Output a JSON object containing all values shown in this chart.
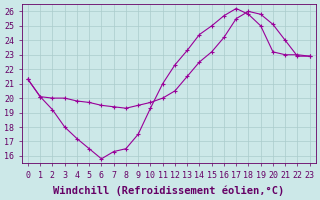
{
  "xlabel": "Windchill (Refroidissement éolien,°C)",
  "ylabel": "",
  "xlim": [
    -0.5,
    23.5
  ],
  "ylim": [
    15.5,
    26.5
  ],
  "xticks": [
    0,
    1,
    2,
    3,
    4,
    5,
    6,
    7,
    8,
    9,
    10,
    11,
    12,
    13,
    14,
    15,
    16,
    17,
    18,
    19,
    20,
    21,
    22,
    23
  ],
  "yticks": [
    16,
    17,
    18,
    19,
    20,
    21,
    22,
    23,
    24,
    25,
    26
  ],
  "bg_color": "#cce8e8",
  "grid_color": "#aacccc",
  "line_color": "#990099",
  "line1_x": [
    0,
    1,
    2,
    3,
    4,
    5,
    6,
    7,
    8,
    9,
    10,
    11,
    12,
    13,
    14,
    15,
    16,
    17,
    18,
    19,
    20,
    21,
    22,
    23
  ],
  "line1_y": [
    21.3,
    20.1,
    19.2,
    18.0,
    17.2,
    16.5,
    15.8,
    16.3,
    16.5,
    17.5,
    19.3,
    21.0,
    22.3,
    23.3,
    24.4,
    25.0,
    25.7,
    26.2,
    25.8,
    25.0,
    23.2,
    23.0,
    23.0,
    22.9
  ],
  "line2_x": [
    0,
    1,
    2,
    3,
    4,
    5,
    6,
    7,
    8,
    9,
    10,
    11,
    12,
    13,
    14,
    15,
    16,
    17,
    18,
    19,
    20,
    21,
    22,
    23
  ],
  "line2_y": [
    21.3,
    20.1,
    20.0,
    20.0,
    19.8,
    19.7,
    19.5,
    19.4,
    19.3,
    19.5,
    19.7,
    20.0,
    20.5,
    21.5,
    22.5,
    23.2,
    24.2,
    25.5,
    26.0,
    25.8,
    25.1,
    24.0,
    22.9,
    22.9
  ],
  "font_color": "#660066",
  "tick_fontsize": 6.0,
  "label_fontsize": 7.5
}
